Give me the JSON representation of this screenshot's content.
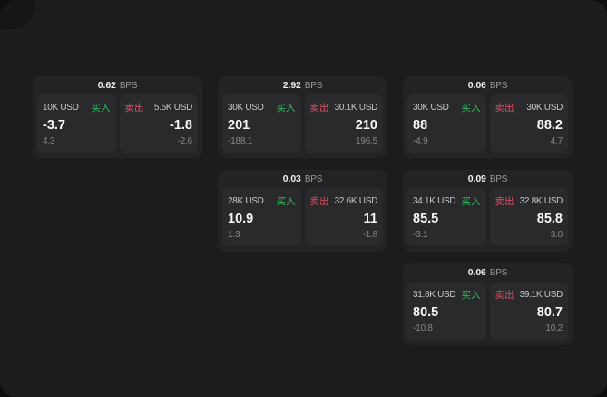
{
  "labels": {
    "bps": "BPS",
    "buy": "买入",
    "sell": "卖出"
  },
  "colors": {
    "buy": "#2fbf5b",
    "sell": "#df4f63",
    "panel": "#1c1c1e",
    "card": "#232325",
    "cell": "#2a2a2c"
  },
  "cards": [
    {
      "row": 1,
      "col": 1,
      "bps": "0.62",
      "buy": {
        "size": "10K USD",
        "value": "-3.7",
        "sub": "4.3"
      },
      "sell": {
        "size": "5.5K USD",
        "value": "-1.8",
        "sub": "-2.6"
      }
    },
    {
      "row": 1,
      "col": 2,
      "bps": "2.92",
      "buy": {
        "size": "30K USD",
        "value": "201",
        "sub": "-188.1"
      },
      "sell": {
        "size": "30.1K USD",
        "value": "210",
        "sub": "196.5"
      }
    },
    {
      "row": 1,
      "col": 3,
      "bps": "0.06",
      "buy": {
        "size": "30K USD",
        "value": "88",
        "sub": "-4.9"
      },
      "sell": {
        "size": "30K USD",
        "value": "88.2",
        "sub": "4.7"
      }
    },
    {
      "row": 2,
      "col": 2,
      "bps": "0.03",
      "buy": {
        "size": "28K USD",
        "value": "10.9",
        "sub": "1.3"
      },
      "sell": {
        "size": "32.6K USD",
        "value": "11",
        "sub": "-1.8"
      }
    },
    {
      "row": 2,
      "col": 3,
      "bps": "0.09",
      "buy": {
        "size": "34.1K USD",
        "value": "85.5",
        "sub": "-3.1"
      },
      "sell": {
        "size": "32.8K USD",
        "value": "85.8",
        "sub": "3.0"
      }
    },
    {
      "row": 3,
      "col": 3,
      "bps": "0.06",
      "buy": {
        "size": "31.8K USD",
        "value": "80.5",
        "sub": "-10.8"
      },
      "sell": {
        "size": "39.1K USD",
        "value": "80.7",
        "sub": "10.2"
      }
    }
  ]
}
